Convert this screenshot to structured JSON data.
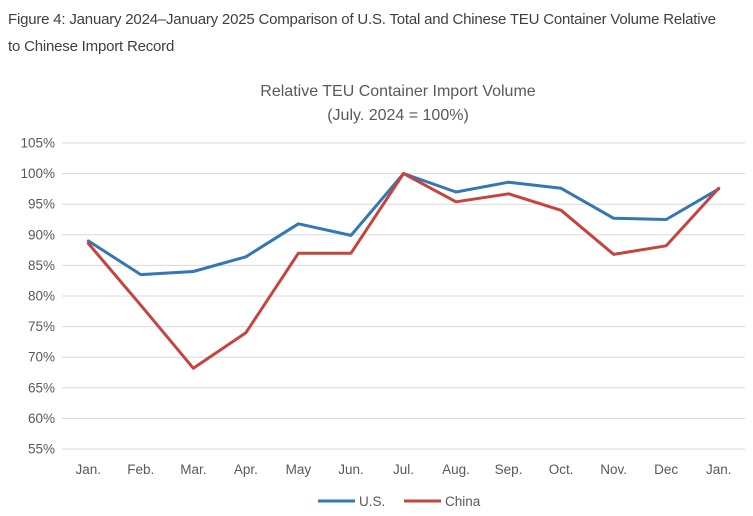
{
  "figure": {
    "caption": "Figure 4: January 2024–January 2025 Comparison of U.S. Total and Chinese TEU Container Volume Relative to Chinese Import Record"
  },
  "chart_data": {
    "type": "line",
    "title": "Relative TEU Container Import Volume",
    "subtitle": "(July. 2024 = 100%)",
    "categories": [
      "Jan.",
      "Feb.",
      "Mar.",
      "Apr.",
      "May",
      "Jun.",
      "Jul.",
      "Aug.",
      "Sep.",
      "Oct.",
      "Nov.",
      "Dec",
      "Jan."
    ],
    "series": [
      {
        "name": "U.S.",
        "color": "#3377B4",
        "values": [
          89.0,
          83.5,
          84.0,
          86.4,
          91.8,
          89.9,
          100.0,
          97.0,
          98.6,
          97.6,
          92.7,
          92.5,
          97.5
        ]
      },
      {
        "name": "China",
        "color": "#C5443E",
        "values": [
          88.6,
          78.5,
          68.2,
          74.0,
          87.0,
          87.0,
          100.0,
          95.4,
          96.7,
          94.0,
          86.8,
          88.2,
          97.6
        ]
      }
    ],
    "ylim": [
      55,
      105
    ],
    "ytick_step": 5,
    "ytick_suffix": "%",
    "grid": true,
    "legend_position": "bottom",
    "colors": {
      "grid": "#D9D9D9",
      "axis_text": "#595959",
      "title_text": "#595959",
      "caption_text": "#3F3F3F",
      "background": "#FFFFFF"
    }
  }
}
